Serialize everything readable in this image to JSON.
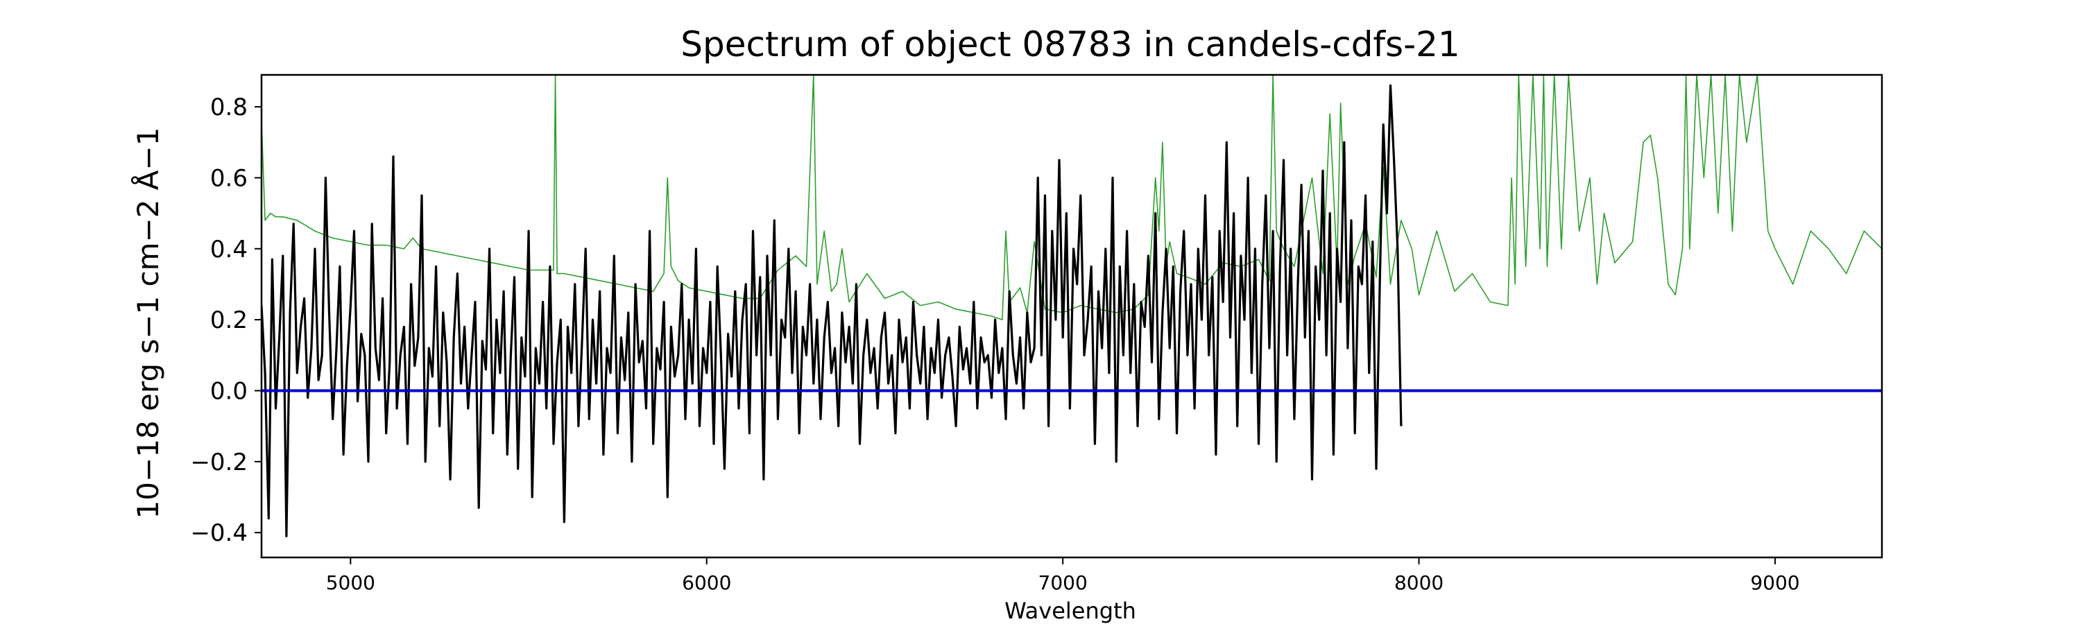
{
  "chart_data": {
    "type": "line",
    "title": "Spectrum of object 08783 in candels-cdfs-21",
    "xlabel": "Wavelength",
    "ylabel": "10−18 erg s−1 cm−2 Å−1",
    "xlim": [
      4750,
      9300
    ],
    "ylim": [
      -0.47,
      0.89
    ],
    "xticks": [
      5000,
      6000,
      7000,
      8000,
      9000
    ],
    "yticks": [
      -0.4,
      -0.2,
      0.0,
      0.2,
      0.4,
      0.6,
      0.8
    ],
    "grid": false,
    "series": [
      {
        "role": "error",
        "color": "#2ca02c",
        "x": [
          4750,
          4760,
          4775,
          4790,
          4810,
          4850,
          4900,
          4950,
          5000,
          5050,
          5100,
          5150,
          5175,
          5200,
          5250,
          5300,
          5350,
          5400,
          5450,
          5500,
          5550,
          5570,
          5575,
          5580,
          5600,
          5650,
          5700,
          5750,
          5800,
          5850,
          5880,
          5890,
          5900,
          5920,
          5950,
          6000,
          6050,
          6100,
          6150,
          6200,
          6250,
          6280,
          6300,
          6310,
          6330,
          6350,
          6365,
          6380,
          6400,
          6450,
          6500,
          6550,
          6600,
          6650,
          6700,
          6750,
          6800,
          6830,
          6840,
          6850,
          6880,
          6900,
          6920,
          6950,
          7000,
          7050,
          7100,
          7150,
          7200,
          7240,
          7260,
          7270,
          7280,
          7290,
          7300,
          7320,
          7350,
          7400,
          7450,
          7500,
          7550,
          7580,
          7590,
          7600,
          7620,
          7650,
          7700,
          7730,
          7750,
          7770,
          7780,
          7800,
          7820,
          7850,
          7880,
          7900,
          7920,
          7950,
          7980,
          8000,
          8050,
          8100,
          8150,
          8200,
          8250,
          8260,
          8270,
          8280,
          8300,
          8320,
          8340,
          8350,
          8360,
          8380,
          8400,
          8420,
          8450,
          8480,
          8500,
          8520,
          8550,
          8600,
          8630,
          8650,
          8670,
          8700,
          8720,
          8740,
          8750,
          8760,
          8780,
          8800,
          8820,
          8840,
          8860,
          8880,
          8900,
          8920,
          8950,
          8980,
          9000,
          9050,
          9100,
          9150,
          9200,
          9250,
          9300
        ],
        "y": [
          0.76,
          0.48,
          0.5,
          0.49,
          0.49,
          0.48,
          0.45,
          0.43,
          0.42,
          0.41,
          0.41,
          0.4,
          0.43,
          0.4,
          0.39,
          0.38,
          0.37,
          0.36,
          0.35,
          0.34,
          0.34,
          0.34,
          0.89,
          0.33,
          0.33,
          0.32,
          0.31,
          0.3,
          0.29,
          0.28,
          0.33,
          0.6,
          0.35,
          0.31,
          0.29,
          0.28,
          0.27,
          0.26,
          0.26,
          0.34,
          0.38,
          0.35,
          0.89,
          0.3,
          0.45,
          0.28,
          0.3,
          0.4,
          0.25,
          0.33,
          0.26,
          0.28,
          0.24,
          0.25,
          0.23,
          0.22,
          0.21,
          0.2,
          0.45,
          0.25,
          0.29,
          0.22,
          0.42,
          0.23,
          0.22,
          0.24,
          0.23,
          0.22,
          0.23,
          0.27,
          0.6,
          0.45,
          0.7,
          0.35,
          0.42,
          0.33,
          0.32,
          0.3,
          0.36,
          0.35,
          0.37,
          0.31,
          0.89,
          0.45,
          0.4,
          0.35,
          0.6,
          0.33,
          0.78,
          0.35,
          0.81,
          0.3,
          0.38,
          0.47,
          0.32,
          0.63,
          0.3,
          0.48,
          0.4,
          0.27,
          0.45,
          0.28,
          0.33,
          0.25,
          0.24,
          0.6,
          0.3,
          0.89,
          0.35,
          0.89,
          0.4,
          0.89,
          0.35,
          0.89,
          0.4,
          0.89,
          0.45,
          0.6,
          0.3,
          0.5,
          0.36,
          0.42,
          0.7,
          0.72,
          0.6,
          0.3,
          0.27,
          0.4,
          0.89,
          0.4,
          0.89,
          0.6,
          0.89,
          0.5,
          0.89,
          0.45,
          0.89,
          0.7,
          0.89,
          0.45,
          0.4,
          0.3,
          0.45,
          0.4,
          0.33,
          0.45,
          0.4
        ]
      },
      {
        "role": "flux",
        "color": "#000000",
        "x_start": 4750,
        "x_step": 10,
        "y": [
          0.24,
          0.05,
          -0.36,
          0.37,
          -0.05,
          0.15,
          0.38,
          -0.41,
          0.22,
          0.47,
          0.05,
          0.18,
          0.26,
          -0.02,
          0.12,
          0.4,
          0.03,
          0.1,
          0.6,
          0.22,
          -0.08,
          0.11,
          0.35,
          -0.18,
          0.07,
          0.24,
          0.45,
          -0.03,
          0.16,
          0.1,
          -0.2,
          0.47,
          0.12,
          0.03,
          0.26,
          -0.12,
          0.08,
          0.66,
          -0.05,
          0.1,
          0.18,
          -0.15,
          0.3,
          0.07,
          0.15,
          0.55,
          -0.2,
          0.12,
          0.04,
          0.35,
          -0.1,
          0.22,
          0.08,
          -0.25,
          0.15,
          0.33,
          0.02,
          0.18,
          -0.05,
          0.1,
          0.25,
          -0.33,
          0.14,
          0.06,
          0.4,
          -0.12,
          0.2,
          0.05,
          0.28,
          -0.18,
          0.1,
          0.32,
          -0.22,
          0.15,
          0.04,
          0.45,
          -0.3,
          0.12,
          0.02,
          0.25,
          -0.05,
          0.35,
          -0.15,
          0.08,
          0.2,
          -0.37,
          0.18,
          0.05,
          0.3,
          -0.1,
          0.14,
          0.4,
          -0.08,
          0.2,
          0.02,
          0.28,
          -0.18,
          0.12,
          0.05,
          0.38,
          -0.12,
          0.15,
          0.03,
          0.22,
          -0.2,
          0.3,
          0.08,
          0.14,
          -0.05,
          0.45,
          -0.15,
          0.12,
          0.06,
          0.25,
          -0.3,
          0.18,
          0.04,
          0.1,
          0.3,
          -0.08,
          0.2,
          0.02,
          0.4,
          -0.1,
          0.12,
          0.05,
          0.25,
          -0.15,
          0.35,
          0.1,
          -0.22,
          0.16,
          0.04,
          0.28,
          -0.05,
          0.2,
          0.3,
          -0.12,
          0.45,
          0.1,
          0.32,
          -0.25,
          0.38,
          0.1,
          0.48,
          -0.08,
          0.2,
          0.15,
          0.4,
          0.05,
          0.28,
          -0.12,
          0.18,
          0.1,
          0.3,
          0.02,
          0.2,
          -0.08,
          0.15,
          0.25,
          0.05,
          0.12,
          -0.1,
          0.22,
          0.08,
          0.18,
          0.02,
          0.3,
          -0.15,
          0.1,
          0.2,
          0.05,
          0.12,
          -0.05,
          0.15,
          0.22,
          0.02,
          0.1,
          -0.12,
          0.2,
          0.08,
          0.15,
          -0.05,
          0.25,
          0.1,
          0.02,
          0.18,
          -0.08,
          0.12,
          0.05,
          0.2,
          -0.02,
          0.1,
          0.15,
          0.04,
          -0.1,
          0.18,
          0.06,
          0.12,
          0.02,
          0.25,
          -0.05,
          0.15,
          0.08,
          0.1,
          -0.02,
          0.2,
          0.05,
          0.12,
          -0.08,
          0.28,
          0.1,
          0.02,
          0.15,
          -0.05,
          0.22,
          0.08,
          0.12,
          0.6,
          0.1,
          0.55,
          -0.1,
          0.45,
          0.2,
          0.65,
          0.15,
          0.5,
          -0.05,
          0.4,
          0.3,
          0.55,
          0.1,
          0.2,
          0.35,
          -0.15,
          0.28,
          0.12,
          0.4,
          0.05,
          0.6,
          -0.2,
          0.35,
          0.1,
          0.45,
          0.05,
          0.3,
          -0.1,
          0.25,
          0.18,
          0.38,
          0.08,
          0.5,
          -0.08,
          0.22,
          0.4,
          0.12,
          0.35,
          -0.12,
          0.28,
          0.45,
          0.1,
          0.3,
          -0.05,
          0.4,
          0.2,
          0.55,
          0.1,
          0.32,
          -0.18,
          0.45,
          0.25,
          0.7,
          0.15,
          0.5,
          -0.1,
          0.38,
          0.2,
          0.6,
          0.05,
          0.4,
          -0.15,
          0.3,
          0.55,
          0.12,
          0.45,
          -0.2,
          0.35,
          0.65,
          0.1,
          0.4,
          -0.08,
          0.3,
          0.58,
          0.15,
          0.45,
          -0.25,
          0.35,
          0.2,
          0.62,
          0.1,
          0.5,
          -0.18,
          0.4,
          0.25,
          0.7,
          0.12,
          0.48,
          -0.12,
          0.35,
          0.3,
          0.55,
          0.05,
          0.42,
          -0.22,
          0.3,
          0.75,
          0.5,
          0.86,
          0.65,
          0.4,
          -0.1
        ]
      },
      {
        "role": "zero",
        "color": "#0000cc",
        "x": [
          4750,
          9300
        ],
        "y": [
          0,
          0
        ]
      }
    ]
  }
}
